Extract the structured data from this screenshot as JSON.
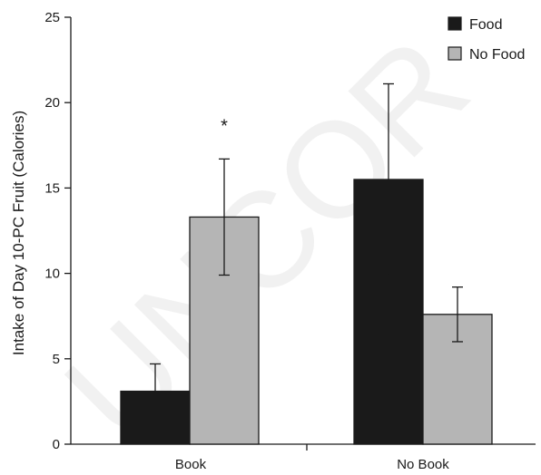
{
  "chart_data": {
    "type": "bar",
    "title": "",
    "xlabel": "",
    "ylabel": "Intake of Day 10-PC Fruit (Calories)",
    "ylim": [
      0,
      25
    ],
    "yticks": [
      0,
      5,
      10,
      15,
      20,
      25
    ],
    "categories": [
      "Book",
      "No Book"
    ],
    "series": [
      {
        "name": "Food",
        "color": "#1a1a1a",
        "values": [
          3.1,
          15.5
        ],
        "error": [
          1.6,
          5.6
        ]
      },
      {
        "name": "No Food",
        "color": "#b5b5b5",
        "values": [
          13.3,
          7.6
        ],
        "error": [
          3.4,
          1.6
        ]
      }
    ],
    "legend_position": "top-right",
    "annotations": [
      {
        "text": "*",
        "category": "Book",
        "series": "No Food"
      }
    ],
    "watermark": "UNCOR",
    "grid": false
  }
}
